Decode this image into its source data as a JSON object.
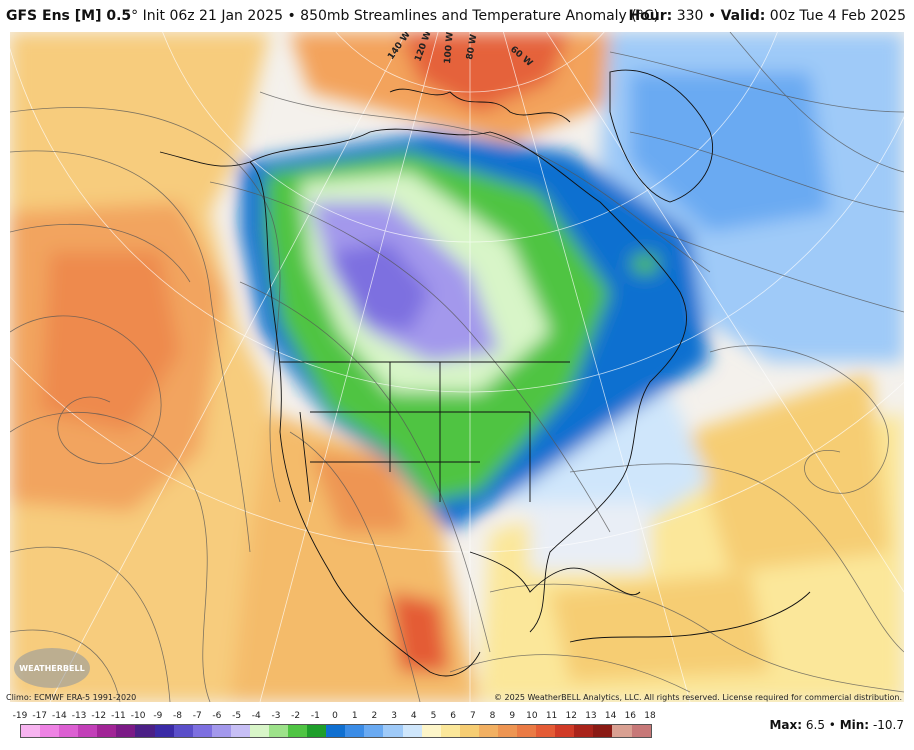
{
  "header": {
    "model": "GFS Ens [M] 0.5",
    "degree": "°",
    "init": "Init 06z 21 Jan 2025",
    "bullet": "•",
    "product": "850mb Streamlines and Temperature Anomaly (°C)",
    "hour_label": "Hour:",
    "hour_value": "330",
    "valid_label": "Valid:",
    "valid_value": "00z Tue 4 Feb 2025"
  },
  "footer": {
    "climo": "Climo: ECMWF ERA-5 1991-2020",
    "copyright": "© 2025 WeatherBELL Analytics, LLC. All rights reserved. License required for commercial distribution.",
    "logo_text": "WEATHERBELL",
    "max_label": "Max:",
    "max_value": "6.5",
    "min_label": "Min:",
    "min_value": "-10.7"
  },
  "map_labels": {
    "lon_labels": [
      "140 W",
      "120 W",
      "100 W",
      "80 W",
      "60 W"
    ]
  },
  "colorbar": {
    "labels": [
      "-19",
      "-17",
      "-14",
      "-13",
      "-12",
      "-11",
      "-10",
      "-9",
      "-8",
      "-7",
      "-6",
      "-5",
      "-4",
      "-3",
      "-2",
      "-1",
      "0",
      "1",
      "2",
      "3",
      "4",
      "5",
      "6",
      "7",
      "8",
      "9",
      "10",
      "11",
      "12",
      "13",
      "14",
      "16",
      "18"
    ],
    "colors": [
      "#f7b4f0",
      "#ee82e4",
      "#dc5fd2",
      "#c23fb8",
      "#a12496",
      "#7b1a86",
      "#4b1f86",
      "#3a2aa6",
      "#5a4ec9",
      "#7d6fe0",
      "#a398ec",
      "#c7bff5",
      "#d8f5c8",
      "#9de28a",
      "#4fc443",
      "#1e9e2a",
      "#0f6fd0",
      "#3b8ce6",
      "#6aaaf2",
      "#9fcaf8",
      "#cfe6fb",
      "#fdf5c9",
      "#fbe79a",
      "#f6cd73",
      "#f2b062",
      "#ee9552",
      "#ea7a44",
      "#e45b35",
      "#d03a26",
      "#a9231a",
      "#8a1a14",
      "#d9a092",
      "#c77878"
    ]
  }
}
